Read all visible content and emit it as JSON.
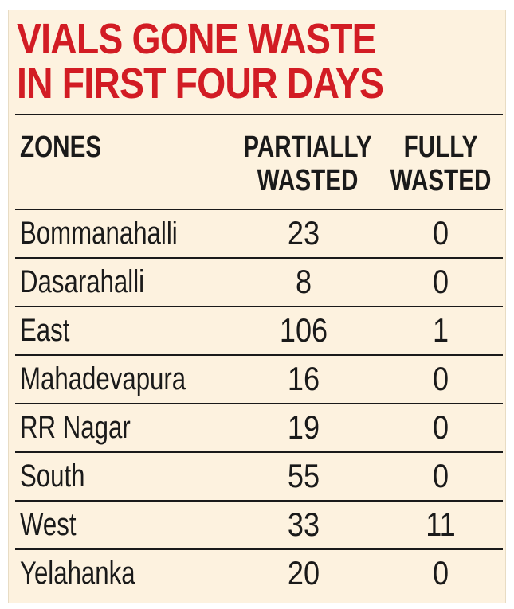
{
  "title": {
    "line1": "VIALS GONE WASTE",
    "line2": "IN FIRST FOUR DAYS"
  },
  "table": {
    "headers": {
      "zones": "ZONES",
      "partially_line1": "PARTIALLY",
      "partially_line2": "WASTED",
      "fully_line1": "FULLY",
      "fully_line2": "WASTED"
    },
    "rows": [
      {
        "zone": "Bommanahalli",
        "partially": "23",
        "fully": "0"
      },
      {
        "zone": "Dasarahalli",
        "partially": "8",
        "fully": "0"
      },
      {
        "zone": "East",
        "partially": "106",
        "fully": "1"
      },
      {
        "zone": "Mahadevapura",
        "partially": "16",
        "fully": "0"
      },
      {
        "zone": "RR Nagar",
        "partially": "19",
        "fully": "0"
      },
      {
        "zone": "South",
        "partially": "55",
        "fully": "0"
      },
      {
        "zone": "West",
        "partially": "33",
        "fully": "11"
      },
      {
        "zone": "Yelahanka",
        "partially": "20",
        "fully": "0"
      }
    ]
  },
  "colors": {
    "title": "#d21c24",
    "background": "#fdf2df",
    "text": "#1a1a1a"
  }
}
